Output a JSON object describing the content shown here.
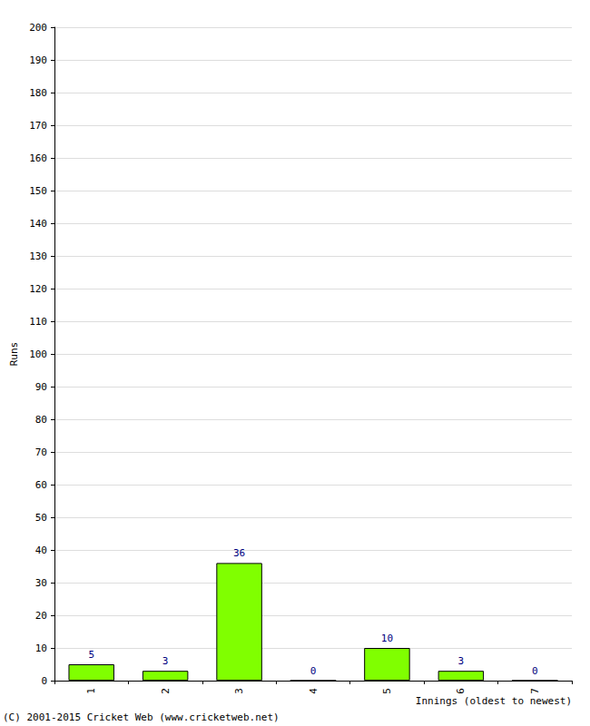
{
  "chart_data": {
    "type": "bar",
    "categories": [
      "1",
      "2",
      "3",
      "4",
      "5",
      "6",
      "7"
    ],
    "values": [
      5,
      3,
      36,
      0,
      10,
      3,
      0
    ],
    "color": "#80ff00",
    "x_label": "Innings (oldest to newest)",
    "y_label": "Runs",
    "annotations": [
      "(C) 2001-2015 Cricket Web (www.cricketweb.net)"
    ],
    "ylim": [
      0,
      200
    ],
    "yticks": [
      0,
      10,
      20,
      30,
      40,
      50,
      60,
      70,
      80,
      90,
      100,
      110,
      120,
      130,
      140,
      150,
      160,
      170,
      180,
      190,
      200
    ],
    "grid": true,
    "data_labels": true
  }
}
